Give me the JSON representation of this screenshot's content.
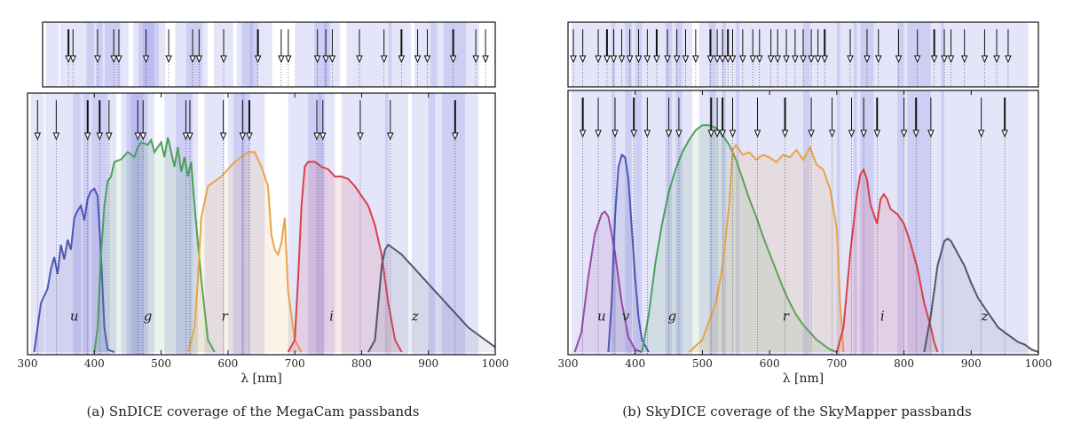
{
  "chart_data": [
    {
      "type": "line",
      "panel_id": "a",
      "caption": "(a)  SnDICE coverage of the MegaCam passbands",
      "xlabel": "λ  [nm]",
      "xlim": [
        300,
        1000
      ],
      "xticks": [
        300,
        400,
        500,
        600,
        700,
        800,
        900,
        1000
      ],
      "ylim": [
        0,
        1
      ],
      "led_bands": [
        [
          305,
          325
        ],
        [
          327,
          350
        ],
        [
          350,
          380
        ],
        [
          368,
          393
        ],
        [
          383,
          408
        ],
        [
          396,
          420
        ],
        [
          408,
          433
        ],
        [
          440,
          465
        ],
        [
          448,
          473
        ],
        [
          455,
          480
        ],
        [
          465,
          490
        ],
        [
          505,
          530
        ],
        [
          522,
          547
        ],
        [
          530,
          555
        ],
        [
          565,
          595
        ],
        [
          600,
          625
        ],
        [
          608,
          633
        ],
        [
          620,
          655
        ],
        [
          690,
          715
        ],
        [
          715,
          740
        ],
        [
          720,
          745
        ],
        [
          735,
          760
        ],
        [
          770,
          800
        ],
        [
          800,
          840
        ],
        [
          835,
          870
        ],
        [
          875,
          910
        ],
        [
          900,
          940
        ],
        [
          920,
          955
        ],
        [
          940,
          975
        ]
      ],
      "led_arrows_top": [
        340,
        347,
        385,
        410,
        418,
        460,
        495,
        532,
        542,
        580,
        633,
        669,
        680,
        725,
        738,
        748,
        790,
        828,
        855,
        880,
        895,
        935,
        970,
        985
      ],
      "led_arrows_top_bold": [
        340,
        633,
        855,
        935
      ],
      "led_arrows_main": [
        315,
        343,
        390,
        408,
        422,
        465,
        473,
        537,
        543,
        593,
        622,
        632,
        733,
        742,
        798,
        843,
        940
      ],
      "led_arrows_main_bold": [
        390,
        408,
        470,
        632,
        735,
        940
      ],
      "series": [
        {
          "name": "u",
          "color": "#4b58b4",
          "fill": "#4b58b4",
          "label_x": 370,
          "label_y": 0.12,
          "x": [
            310,
            320,
            330,
            335,
            340,
            345,
            350,
            355,
            360,
            365,
            370,
            375,
            380,
            385,
            390,
            395,
            400,
            405,
            410,
            415,
            420,
            430
          ],
          "y": [
            0,
            0.2,
            0.26,
            0.34,
            0.39,
            0.32,
            0.44,
            0.38,
            0.46,
            0.42,
            0.55,
            0.58,
            0.6,
            0.54,
            0.63,
            0.66,
            0.67,
            0.64,
            0.4,
            0.1,
            0.01,
            0
          ]
        },
        {
          "name": "g",
          "color": "#4ca15a",
          "fill": "#4ca15a",
          "label_x": 480,
          "label_y": 0.12,
          "x": [
            400,
            405,
            410,
            415,
            420,
            425,
            430,
            440,
            450,
            460,
            465,
            470,
            480,
            485,
            490,
            500,
            505,
            510,
            520,
            525,
            530,
            535,
            540,
            545,
            550,
            560,
            570,
            580
          ],
          "y": [
            0,
            0.1,
            0.4,
            0.6,
            0.7,
            0.72,
            0.78,
            0.79,
            0.82,
            0.8,
            0.84,
            0.86,
            0.85,
            0.87,
            0.82,
            0.86,
            0.8,
            0.88,
            0.76,
            0.84,
            0.74,
            0.8,
            0.72,
            0.78,
            0.6,
            0.3,
            0.05,
            0
          ]
        },
        {
          "name": "r",
          "color": "#e8a446",
          "fill": "#e8a446",
          "label_x": 595,
          "label_y": 0.12,
          "x": [
            540,
            550,
            555,
            560,
            570,
            580,
            590,
            600,
            610,
            620,
            630,
            640,
            650,
            660,
            665,
            670,
            675,
            680,
            685,
            690,
            700,
            710
          ],
          "y": [
            0,
            0.1,
            0.3,
            0.55,
            0.68,
            0.7,
            0.72,
            0.75,
            0.78,
            0.8,
            0.82,
            0.82,
            0.76,
            0.68,
            0.48,
            0.42,
            0.4,
            0.45,
            0.55,
            0.25,
            0.05,
            0
          ]
        },
        {
          "name": "i",
          "color": "#d9404a",
          "fill": "#d9404a",
          "label_x": 755,
          "label_y": 0.12,
          "x": [
            690,
            700,
            705,
            710,
            715,
            720,
            730,
            740,
            750,
            760,
            770,
            780,
            790,
            800,
            810,
            820,
            830,
            840,
            850,
            860
          ],
          "y": [
            0,
            0.05,
            0.3,
            0.6,
            0.76,
            0.78,
            0.78,
            0.76,
            0.75,
            0.72,
            0.72,
            0.71,
            0.68,
            0.64,
            0.6,
            0.52,
            0.4,
            0.2,
            0.05,
            0
          ]
        },
        {
          "name": "z",
          "color": "#52566a",
          "fill": "#7a7d8a",
          "label_x": 880,
          "label_y": 0.12,
          "x": [
            810,
            820,
            825,
            830,
            835,
            840,
            850,
            860,
            870,
            880,
            890,
            900,
            910,
            920,
            930,
            940,
            950,
            960,
            970,
            980,
            990,
            1000
          ],
          "y": [
            0,
            0.05,
            0.2,
            0.35,
            0.42,
            0.44,
            0.42,
            0.4,
            0.37,
            0.34,
            0.31,
            0.28,
            0.25,
            0.22,
            0.19,
            0.16,
            0.13,
            0.1,
            0.08,
            0.06,
            0.04,
            0.02
          ]
        }
      ]
    },
    {
      "type": "line",
      "panel_id": "b",
      "caption": "(b)  SkyDICE coverage of the SkyMapper passbands",
      "xlabel": "λ  [nm]",
      "xlim": [
        300,
        1000
      ],
      "xticks": [
        300,
        400,
        500,
        600,
        700,
        800,
        900,
        1000
      ],
      "ylim": [
        0,
        1
      ],
      "led_bands": [
        [
          305,
          325
        ],
        [
          325,
          350
        ],
        [
          350,
          370
        ],
        [
          365,
          395
        ],
        [
          385,
          410
        ],
        [
          400,
          430
        ],
        [
          430,
          455
        ],
        [
          445,
          470
        ],
        [
          460,
          485
        ],
        [
          495,
          520
        ],
        [
          510,
          535
        ],
        [
          530,
          555
        ],
        [
          550,
          575
        ],
        [
          575,
          600
        ],
        [
          600,
          630
        ],
        [
          630,
          660
        ],
        [
          650,
          680
        ],
        [
          680,
          705
        ],
        [
          700,
          730
        ],
        [
          725,
          755
        ],
        [
          735,
          765
        ],
        [
          765,
          800
        ],
        [
          790,
          830
        ],
        [
          805,
          840
        ],
        [
          830,
          860
        ],
        [
          855,
          880
        ],
        [
          880,
          910
        ],
        [
          910,
          940
        ],
        [
          940,
          985
        ]
      ],
      "led_arrows_top": [
        308,
        322,
        345,
        358,
        368,
        380,
        392,
        405,
        418,
        432,
        448,
        462,
        475,
        490,
        512,
        522,
        530,
        538,
        545,
        560,
        575,
        585,
        602,
        612,
        625,
        638,
        650,
        662,
        672,
        682,
        720,
        745,
        762,
        792,
        820,
        845,
        860,
        870,
        890,
        920,
        938,
        955
      ],
      "led_arrows_top_bold": [
        358,
        432,
        512,
        538,
        682,
        845
      ],
      "led_arrows_main": [
        322,
        345,
        370,
        398,
        418,
        450,
        465,
        513,
        522,
        530,
        545,
        582,
        623,
        662,
        693,
        722,
        740,
        760,
        800,
        818,
        840,
        915,
        950
      ],
      "led_arrows_main_bold": [
        322,
        398,
        513,
        530,
        623,
        760,
        818,
        950
      ],
      "series": [
        {
          "name": "u",
          "color": "#9a4aa6",
          "fill": "#9a4aa6",
          "label_x": 350,
          "label_y": 0.12,
          "x": [
            310,
            320,
            330,
            340,
            350,
            355,
            360,
            365,
            370,
            380,
            390,
            400,
            410
          ],
          "y": [
            0,
            0.08,
            0.3,
            0.48,
            0.56,
            0.57,
            0.55,
            0.48,
            0.4,
            0.2,
            0.06,
            0.01,
            0
          ]
        },
        {
          "name": "v",
          "color": "#4b58b4",
          "fill": "#4b58b4",
          "label_x": 386,
          "label_y": 0.12,
          "x": [
            360,
            365,
            370,
            375,
            380,
            385,
            390,
            395,
            400,
            405,
            410,
            420
          ],
          "y": [
            0,
            0.2,
            0.55,
            0.75,
            0.8,
            0.79,
            0.7,
            0.5,
            0.3,
            0.14,
            0.05,
            0
          ]
        },
        {
          "name": "g",
          "color": "#4ca15a",
          "fill": "#4ca15a",
          "label_x": 455,
          "label_y": 0.12,
          "x": [
            410,
            420,
            430,
            440,
            450,
            460,
            470,
            480,
            490,
            500,
            510,
            520,
            530,
            540,
            550,
            560,
            570,
            580,
            590,
            600,
            610,
            620,
            630,
            640,
            650,
            660,
            670,
            680,
            690,
            700
          ],
          "y": [
            0,
            0.15,
            0.36,
            0.52,
            0.65,
            0.74,
            0.81,
            0.86,
            0.9,
            0.92,
            0.92,
            0.91,
            0.88,
            0.84,
            0.78,
            0.7,
            0.62,
            0.55,
            0.47,
            0.4,
            0.33,
            0.26,
            0.2,
            0.15,
            0.11,
            0.08,
            0.05,
            0.03,
            0.01,
            0
          ]
        },
        {
          "name": "r",
          "color": "#e8a446",
          "fill": "#e8a446",
          "label_x": 624,
          "label_y": 0.12,
          "x": [
            480,
            500,
            520,
            530,
            540,
            545,
            550,
            560,
            570,
            580,
            590,
            600,
            610,
            620,
            630,
            640,
            650,
            660,
            670,
            680,
            690,
            700,
            705,
            710
          ],
          "y": [
            0,
            0.05,
            0.2,
            0.35,
            0.6,
            0.82,
            0.84,
            0.8,
            0.81,
            0.78,
            0.8,
            0.79,
            0.77,
            0.8,
            0.79,
            0.82,
            0.78,
            0.83,
            0.76,
            0.74,
            0.66,
            0.5,
            0.2,
            0
          ]
        },
        {
          "name": "i",
          "color": "#d9404a",
          "fill": "#d9404a",
          "label_x": 768,
          "label_y": 0.12,
          "x": [
            700,
            710,
            720,
            730,
            735,
            740,
            745,
            750,
            760,
            765,
            770,
            775,
            780,
            790,
            800,
            810,
            820,
            830,
            840,
            845,
            850
          ],
          "y": [
            0,
            0.1,
            0.4,
            0.64,
            0.72,
            0.74,
            0.7,
            0.6,
            0.52,
            0.62,
            0.64,
            0.62,
            0.58,
            0.56,
            0.52,
            0.44,
            0.34,
            0.2,
            0.1,
            0.04,
            0
          ]
        },
        {
          "name": "z",
          "color": "#52566a",
          "fill": "#7a7d8a",
          "label_x": 920,
          "label_y": 0.12,
          "x": [
            830,
            840,
            850,
            860,
            865,
            870,
            880,
            890,
            900,
            910,
            920,
            930,
            940,
            950,
            960,
            970,
            980,
            990,
            1000
          ],
          "y": [
            0,
            0.15,
            0.35,
            0.45,
            0.46,
            0.45,
            0.4,
            0.35,
            0.28,
            0.22,
            0.18,
            0.14,
            0.1,
            0.08,
            0.06,
            0.04,
            0.03,
            0.01,
            0
          ]
        }
      ]
    }
  ]
}
